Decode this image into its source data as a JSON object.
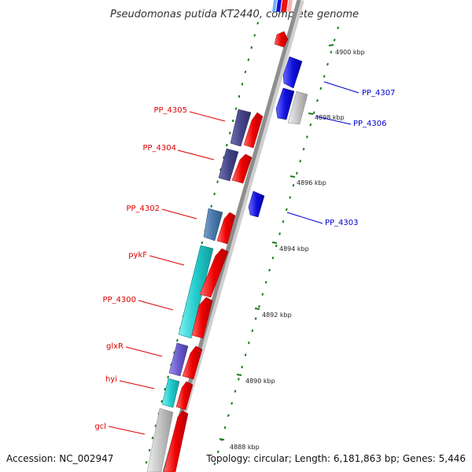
{
  "title": "Pseudomonas putida KT2440, complete genome",
  "footer": {
    "accession": "Accession: NC_002947",
    "summary": "Topology: circular; Length: 6,181,863 bp; Genes: 5,446"
  },
  "colors": {
    "forward_label": "#dd0000",
    "reverse_label": "#0000cc",
    "backbone": "#909090",
    "tick": "#1a7a1a",
    "gene_red": "#ee1111",
    "gene_blue": "#1111dd",
    "gene_purple": "#4a4a8a",
    "gene_cyan": "#22cccc",
    "gene_gray": "#bdbdbd"
  },
  "scale_labels": [
    "4900 kbp",
    "4898 kbp",
    "4896 kbp",
    "4894 kbp",
    "4892 kbp",
    "4890 kbp",
    "4888 kbp"
  ],
  "genes": {
    "forward": [
      "PP_4305",
      "PP_4304",
      "PP_4302",
      "pykF",
      "PP_4300",
      "glxR",
      "hyi",
      "gcl"
    ],
    "reverse": [
      "PP_4307",
      "PP_4306",
      "PP_4303"
    ]
  }
}
